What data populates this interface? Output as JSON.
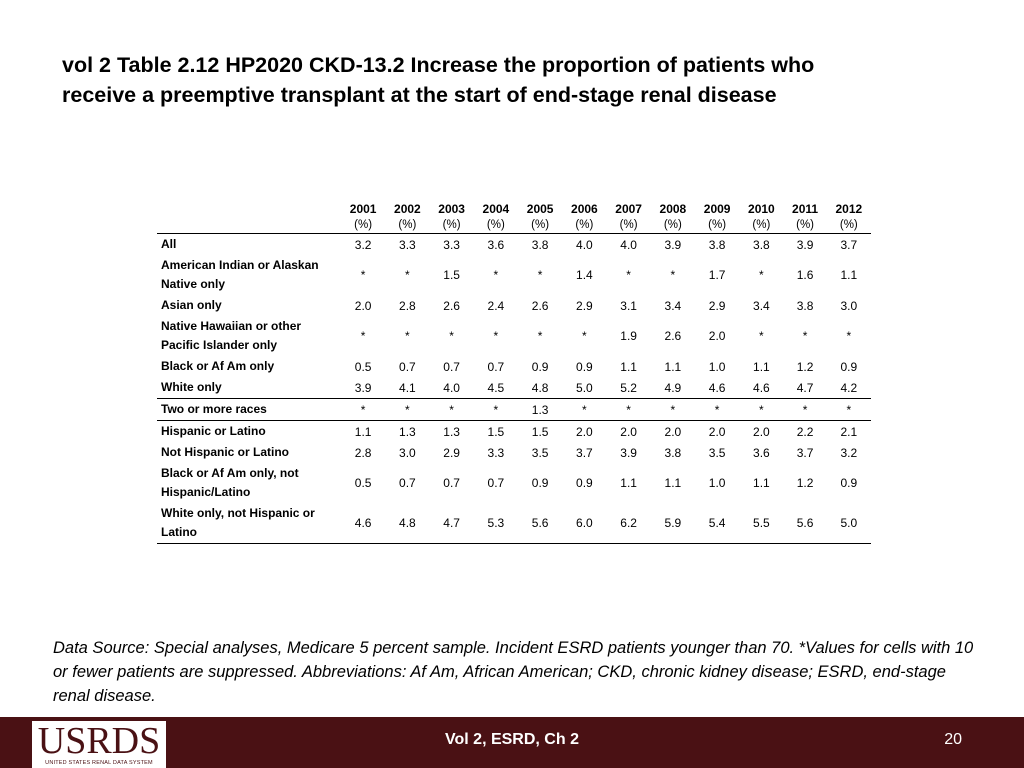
{
  "title": {
    "line1": "vol 2 Table 2.12  HP2020 CKD-13.2 Increase the proportion of patients who",
    "line2": "receive a preemptive transplant at the start of end-stage renal disease"
  },
  "table": {
    "years": [
      "2001",
      "2002",
      "2003",
      "2004",
      "2005",
      "2006",
      "2007",
      "2008",
      "2009",
      "2010",
      "2011",
      "2012"
    ],
    "unit": "(%)",
    "rows": [
      {
        "label": "All",
        "values": [
          "3.2",
          "3.3",
          "3.3",
          "3.6",
          "3.8",
          "4.0",
          "4.0",
          "3.9",
          "3.8",
          "3.8",
          "3.9",
          "3.7"
        ]
      },
      {
        "label": "American Indian or Alaskan Native only",
        "values": [
          "*",
          "*",
          "1.5",
          "*",
          "*",
          "1.4",
          "*",
          "*",
          "1.7",
          "*",
          "1.6",
          "1.1"
        ]
      },
      {
        "label": "Asian only",
        "values": [
          "2.0",
          "2.8",
          "2.6",
          "2.4",
          "2.6",
          "2.9",
          "3.1",
          "3.4",
          "2.9",
          "3.4",
          "3.8",
          "3.0"
        ]
      },
      {
        "label": "Native Hawaiian or other Pacific Islander only",
        "values": [
          "*",
          "*",
          "*",
          "*",
          "*",
          "*",
          "1.9",
          "2.6",
          "2.0",
          "*",
          "*",
          "*"
        ]
      },
      {
        "label": "Black or Af Am only",
        "values": [
          "0.5",
          "0.7",
          "0.7",
          "0.7",
          "0.9",
          "0.9",
          "1.1",
          "1.1",
          "1.0",
          "1.1",
          "1.2",
          "0.9"
        ]
      },
      {
        "label": "White only",
        "values": [
          "3.9",
          "4.1",
          "4.0",
          "4.5",
          "4.8",
          "5.0",
          "5.2",
          "4.9",
          "4.6",
          "4.6",
          "4.7",
          "4.2"
        ]
      },
      {
        "label": "Two or more races",
        "values": [
          "*",
          "*",
          "*",
          "*",
          "1.3",
          "*",
          "*",
          "*",
          "*",
          "*",
          "*",
          "*"
        ]
      },
      {
        "label": "Hispanic or Latino",
        "values": [
          "1.1",
          "1.3",
          "1.3",
          "1.5",
          "1.5",
          "2.0",
          "2.0",
          "2.0",
          "2.0",
          "2.0",
          "2.2",
          "2.1"
        ]
      },
      {
        "label": "Not Hispanic or Latino",
        "values": [
          "2.8",
          "3.0",
          "2.9",
          "3.3",
          "3.5",
          "3.7",
          "3.9",
          "3.8",
          "3.5",
          "3.6",
          "3.7",
          "3.2"
        ]
      },
      {
        "label": "Black or Af Am only, not Hispanic/Latino",
        "values": [
          "0.5",
          "0.7",
          "0.7",
          "0.7",
          "0.9",
          "0.9",
          "1.1",
          "1.1",
          "1.0",
          "1.1",
          "1.2",
          "0.9"
        ]
      },
      {
        "label": "White only, not Hispanic or Latino",
        "values": [
          "4.6",
          "4.8",
          "4.7",
          "5.3",
          "5.6",
          "6.0",
          "6.2",
          "5.9",
          "5.4",
          "5.5",
          "5.6",
          "5.0"
        ]
      }
    ]
  },
  "footnote": "Data Source: Special analyses, Medicare 5 percent sample. Incident ESRD patients younger than 70. *Values for cells with 10 or fewer patients are suppressed. Abbreviations: Af Am, African American; CKD, chronic kidney disease; ESRD, end-stage renal disease.",
  "footer": {
    "logo_text": "USRDS",
    "logo_subtext": "UNITED STATES RENAL DATA SYSTEM",
    "center": "Vol 2, ESRD, Ch 2",
    "page": "20"
  },
  "colors": {
    "footer_bg": "#4a1114"
  }
}
